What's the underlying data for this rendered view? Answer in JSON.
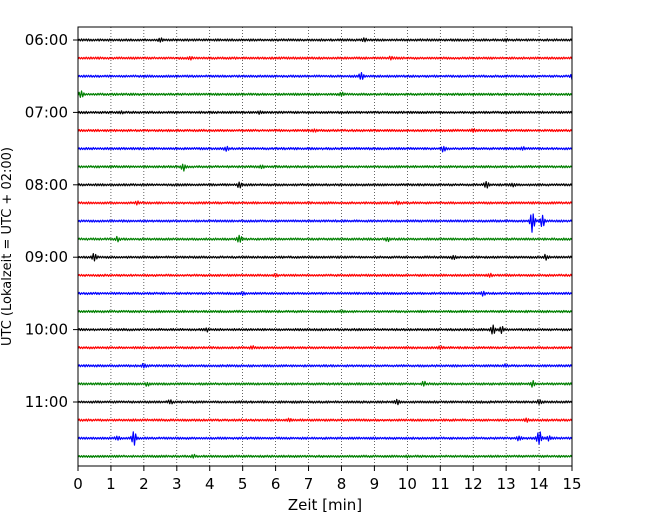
{
  "chart_data": {
    "type": "line",
    "title": "",
    "xlabel": "Zeit  [min]",
    "ylabel": "UTC (Lokalzeit = UTC + 02:00)",
    "xlim": [
      0,
      15
    ],
    "x_ticks": [
      "0",
      "1",
      "2",
      "3",
      "4",
      "5",
      "6",
      "7",
      "8",
      "9",
      "10",
      "11",
      "12",
      "13",
      "14",
      "15"
    ],
    "y_tick_labels": [
      "06:00",
      "07:00",
      "08:00",
      "09:00",
      "10:00",
      "11:00"
    ],
    "grid": "vertical dotted",
    "legend": "none",
    "series_colors": [
      "#000000",
      "#ff0000",
      "#0000ff",
      "#008000"
    ],
    "series": [
      {
        "start": "06:00",
        "color": "#000000",
        "events": [
          [
            2.5,
            1.5
          ],
          [
            8.7,
            1.2
          ],
          [
            13.0,
            1.2
          ]
        ]
      },
      {
        "start": "06:15",
        "color": "#ff0000",
        "events": [
          [
            3.4,
            1.2
          ],
          [
            9.5,
            1.0
          ]
        ]
      },
      {
        "start": "06:30",
        "color": "#0000ff",
        "events": [
          [
            8.6,
            3.5
          ],
          [
            15.0,
            2.5
          ]
        ]
      },
      {
        "start": "06:45",
        "color": "#008000",
        "events": [
          [
            0.1,
            3.5
          ],
          [
            8.0,
            1.6
          ]
        ]
      },
      {
        "start": "07:00",
        "color": "#000000",
        "events": [
          [
            1.3,
            1.2
          ],
          [
            5.5,
            1.0
          ]
        ]
      },
      {
        "start": "07:15",
        "color": "#ff0000",
        "events": [
          [
            7.2,
            1.0
          ],
          [
            12.0,
            1.0
          ]
        ]
      },
      {
        "start": "07:30",
        "color": "#0000ff",
        "events": [
          [
            4.5,
            1.8
          ],
          [
            11.1,
            2.8
          ],
          [
            13.5,
            1.2
          ]
        ]
      },
      {
        "start": "07:45",
        "color": "#008000",
        "events": [
          [
            3.2,
            3.5
          ],
          [
            5.6,
            1.5
          ]
        ]
      },
      {
        "start": "08:00",
        "color": "#000000",
        "events": [
          [
            4.9,
            3.0
          ],
          [
            12.4,
            3.5
          ],
          [
            13.2,
            1.5
          ]
        ]
      },
      {
        "start": "08:15",
        "color": "#ff0000",
        "events": [
          [
            1.8,
            1.5
          ],
          [
            9.7,
            1.2
          ]
        ]
      },
      {
        "start": "08:30",
        "color": "#0000ff",
        "events": [
          [
            13.8,
            11.0
          ],
          [
            14.1,
            6.0
          ]
        ]
      },
      {
        "start": "08:45",
        "color": "#008000",
        "events": [
          [
            1.2,
            1.8
          ],
          [
            4.9,
            3.5
          ],
          [
            9.4,
            1.6
          ]
        ]
      },
      {
        "start": "09:00",
        "color": "#000000",
        "events": [
          [
            0.5,
            4.0
          ],
          [
            11.4,
            1.5
          ],
          [
            14.2,
            2.0
          ]
        ]
      },
      {
        "start": "09:15",
        "color": "#ff0000",
        "events": [
          [
            6.0,
            1.0
          ],
          [
            12.5,
            1.2
          ]
        ]
      },
      {
        "start": "09:30",
        "color": "#0000ff",
        "events": [
          [
            5.0,
            1.5
          ],
          [
            12.3,
            2.0
          ]
        ]
      },
      {
        "start": "09:45",
        "color": "#008000",
        "events": [
          [
            8.0,
            1.2
          ]
        ]
      },
      {
        "start": "10:00",
        "color": "#000000",
        "events": [
          [
            12.6,
            4.5
          ],
          [
            12.85,
            3.5
          ],
          [
            3.9,
            1.5
          ]
        ]
      },
      {
        "start": "10:15",
        "color": "#ff0000",
        "events": [
          [
            5.3,
            1.2
          ],
          [
            11.0,
            1.0
          ]
        ]
      },
      {
        "start": "10:30",
        "color": "#0000ff",
        "events": [
          [
            2.0,
            2.5
          ],
          [
            13.0,
            1.2
          ]
        ]
      },
      {
        "start": "10:45",
        "color": "#008000",
        "events": [
          [
            2.1,
            1.5
          ],
          [
            10.5,
            2.2
          ],
          [
            13.8,
            2.5
          ]
        ]
      },
      {
        "start": "11:00",
        "color": "#000000",
        "events": [
          [
            2.8,
            2.0
          ],
          [
            9.7,
            2.8
          ],
          [
            14.0,
            1.8
          ]
        ]
      },
      {
        "start": "11:15",
        "color": "#ff0000",
        "events": [
          [
            6.4,
            1.5
          ],
          [
            13.6,
            1.6
          ]
        ]
      },
      {
        "start": "11:30",
        "color": "#0000ff",
        "events": [
          [
            1.7,
            9.0
          ],
          [
            1.2,
            2.0
          ],
          [
            13.4,
            2.5
          ],
          [
            14.0,
            9.0
          ],
          [
            14.3,
            2.0
          ]
        ]
      },
      {
        "start": "11:45",
        "color": "#008000",
        "events": [
          [
            3.5,
            1.2
          ],
          [
            10.0,
            1.0
          ]
        ]
      }
    ]
  }
}
